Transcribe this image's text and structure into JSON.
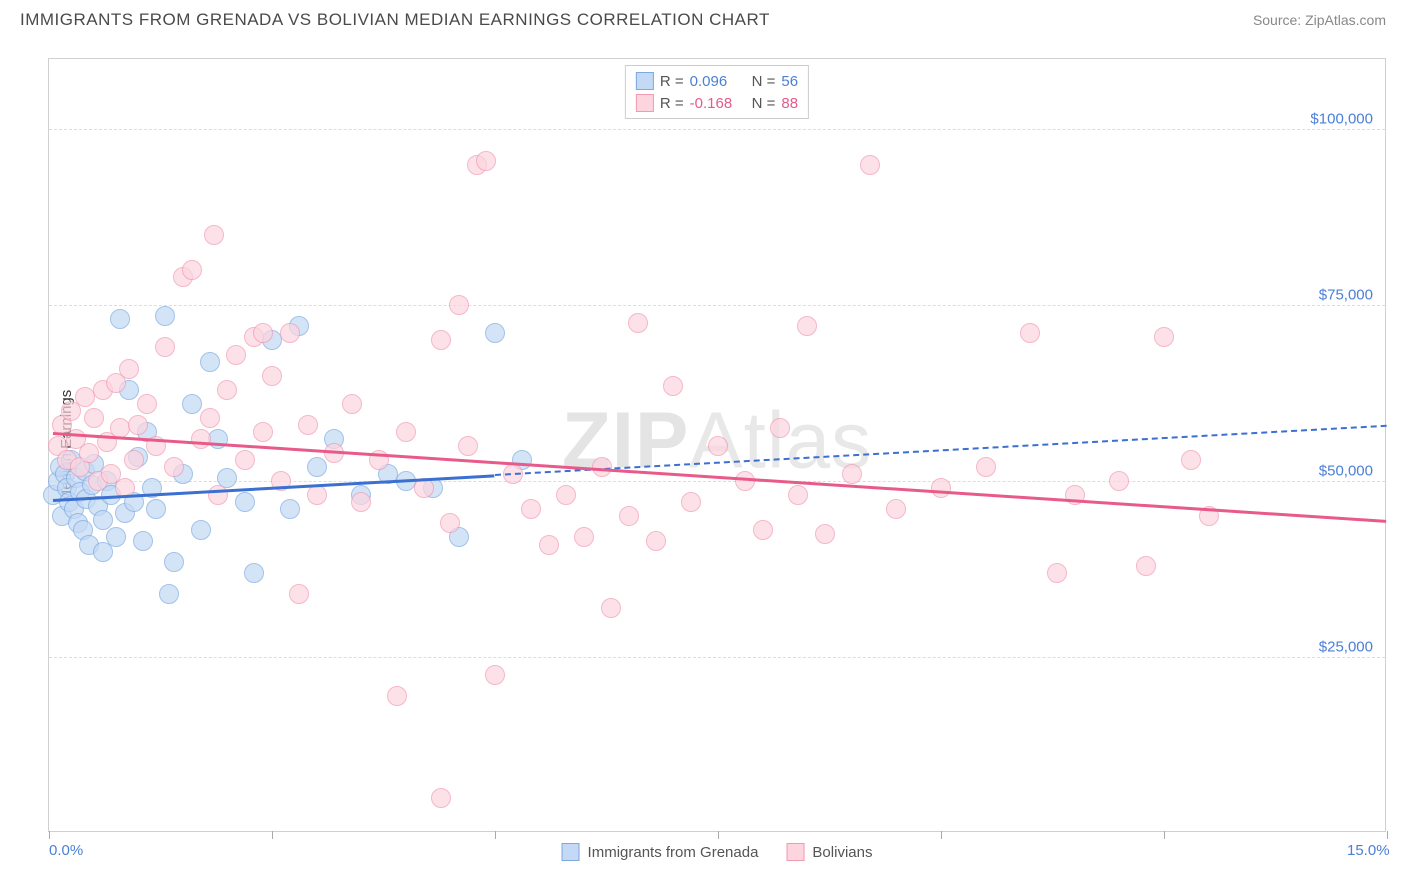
{
  "title": "IMMIGRANTS FROM GRENADA VS BOLIVIAN MEDIAN EARNINGS CORRELATION CHART",
  "source": "Source: ZipAtlas.com",
  "watermark": "ZIPAtlas",
  "ylabel": "Median Earnings",
  "chart": {
    "type": "scatter",
    "xlim": [
      0,
      15
    ],
    "ylim": [
      0,
      110000
    ],
    "x_tick_positions": [
      0,
      2.5,
      5,
      7.5,
      10,
      12.5,
      15
    ],
    "x_axis_labels": [
      {
        "pos": 0,
        "text": "0.0%"
      },
      {
        "pos": 15,
        "text": "15.0%"
      }
    ],
    "y_gridlines": [
      25000,
      50000,
      75000,
      100000
    ],
    "y_tick_labels": [
      "$25,000",
      "$50,000",
      "$75,000",
      "$100,000"
    ],
    "background_color": "#ffffff",
    "grid_color": "#dddddd",
    "border_color": "#d0d0d0",
    "label_color": "#4a7fd8",
    "point_radius": 10,
    "series": [
      {
        "name": "Immigrants from Grenada",
        "fill": "#c3d9f5",
        "stroke": "#7ba9e0",
        "fill_opacity": 0.7,
        "R": "0.096",
        "N": "56",
        "stat_color": "#4a7fd8",
        "trend": {
          "x1": 0.05,
          "y1": 47500,
          "x2": 5.0,
          "y2": 51000,
          "solid": true,
          "dash_x2": 15,
          "dash_y2": 58000,
          "color": "#3b6fd0",
          "width": 3
        },
        "points": [
          [
            0.05,
            48000
          ],
          [
            0.1,
            50000
          ],
          [
            0.12,
            52000
          ],
          [
            0.15,
            45000
          ],
          [
            0.18,
            51000
          ],
          [
            0.2,
            49000
          ],
          [
            0.22,
            47000
          ],
          [
            0.25,
            53000
          ],
          [
            0.28,
            46000
          ],
          [
            0.3,
            50500
          ],
          [
            0.32,
            44000
          ],
          [
            0.35,
            48500
          ],
          [
            0.38,
            43000
          ],
          [
            0.4,
            51500
          ],
          [
            0.42,
            47500
          ],
          [
            0.45,
            41000
          ],
          [
            0.48,
            49500
          ],
          [
            0.5,
            52500
          ],
          [
            0.55,
            46500
          ],
          [
            0.6,
            44500
          ],
          [
            0.65,
            50000
          ],
          [
            0.7,
            48000
          ],
          [
            0.75,
            42000
          ],
          [
            0.8,
            73000
          ],
          [
            0.85,
            45500
          ],
          [
            0.9,
            63000
          ],
          [
            0.95,
            47000
          ],
          [
            1.0,
            53500
          ],
          [
            1.05,
            41500
          ],
          [
            1.1,
            57000
          ],
          [
            1.15,
            49000
          ],
          [
            1.2,
            46000
          ],
          [
            1.3,
            73500
          ],
          [
            1.35,
            34000
          ],
          [
            1.4,
            38500
          ],
          [
            1.5,
            51000
          ],
          [
            1.6,
            61000
          ],
          [
            1.7,
            43000
          ],
          [
            1.8,
            67000
          ],
          [
            1.9,
            56000
          ],
          [
            2.0,
            50500
          ],
          [
            2.2,
            47000
          ],
          [
            2.3,
            37000
          ],
          [
            2.5,
            70000
          ],
          [
            2.7,
            46000
          ],
          [
            2.8,
            72000
          ],
          [
            3.0,
            52000
          ],
          [
            3.2,
            56000
          ],
          [
            3.5,
            48000
          ],
          [
            3.8,
            51000
          ],
          [
            4.0,
            50000
          ],
          [
            4.3,
            49000
          ],
          [
            4.6,
            42000
          ],
          [
            5.0,
            71000
          ],
          [
            5.3,
            53000
          ],
          [
            0.6,
            40000
          ]
        ]
      },
      {
        "name": "Bolivians",
        "fill": "#fcd5df",
        "stroke": "#f299b3",
        "fill_opacity": 0.7,
        "R": "-0.168",
        "N": "88",
        "stat_color": "#e85a8a",
        "trend": {
          "x1": 0.05,
          "y1": 57000,
          "x2": 15,
          "y2": 44500,
          "solid": true,
          "color": "#e85a8a",
          "width": 3
        },
        "points": [
          [
            0.1,
            55000
          ],
          [
            0.15,
            58000
          ],
          [
            0.2,
            53000
          ],
          [
            0.25,
            60000
          ],
          [
            0.3,
            56000
          ],
          [
            0.35,
            52000
          ],
          [
            0.4,
            62000
          ],
          [
            0.45,
            54000
          ],
          [
            0.5,
            59000
          ],
          [
            0.55,
            50000
          ],
          [
            0.6,
            63000
          ],
          [
            0.65,
            55500
          ],
          [
            0.7,
            51000
          ],
          [
            0.75,
            64000
          ],
          [
            0.8,
            57500
          ],
          [
            0.85,
            49000
          ],
          [
            0.9,
            66000
          ],
          [
            0.95,
            53000
          ],
          [
            1.0,
            58000
          ],
          [
            1.1,
            61000
          ],
          [
            1.2,
            55000
          ],
          [
            1.3,
            69000
          ],
          [
            1.4,
            52000
          ],
          [
            1.5,
            79000
          ],
          [
            1.6,
            80000
          ],
          [
            1.7,
            56000
          ],
          [
            1.8,
            59000
          ],
          [
            1.85,
            85000
          ],
          [
            1.9,
            48000
          ],
          [
            2.0,
            63000
          ],
          [
            2.1,
            68000
          ],
          [
            2.2,
            53000
          ],
          [
            2.3,
            70500
          ],
          [
            2.4,
            57000
          ],
          [
            2.5,
            65000
          ],
          [
            2.6,
            50000
          ],
          [
            2.7,
            71000
          ],
          [
            2.8,
            34000
          ],
          [
            2.9,
            58000
          ],
          [
            3.0,
            48000
          ],
          [
            3.2,
            54000
          ],
          [
            3.4,
            61000
          ],
          [
            3.5,
            47000
          ],
          [
            3.7,
            53000
          ],
          [
            3.9,
            19500
          ],
          [
            4.0,
            57000
          ],
          [
            4.2,
            49000
          ],
          [
            4.4,
            70000
          ],
          [
            4.5,
            44000
          ],
          [
            4.6,
            75000
          ],
          [
            4.7,
            55000
          ],
          [
            4.8,
            95000
          ],
          [
            4.9,
            95500
          ],
          [
            5.0,
            22500
          ],
          [
            5.2,
            51000
          ],
          [
            5.4,
            46000
          ],
          [
            5.6,
            41000
          ],
          [
            5.8,
            48000
          ],
          [
            6.0,
            42000
          ],
          [
            6.2,
            52000
          ],
          [
            6.3,
            32000
          ],
          [
            6.5,
            45000
          ],
          [
            6.6,
            72500
          ],
          [
            6.8,
            41500
          ],
          [
            7.0,
            63500
          ],
          [
            7.2,
            47000
          ],
          [
            7.5,
            55000
          ],
          [
            7.8,
            50000
          ],
          [
            8.0,
            43000
          ],
          [
            8.2,
            57500
          ],
          [
            8.4,
            48000
          ],
          [
            8.5,
            72000
          ],
          [
            8.7,
            42500
          ],
          [
            9.0,
            51000
          ],
          [
            9.2,
            95000
          ],
          [
            9.5,
            46000
          ],
          [
            10.0,
            49000
          ],
          [
            10.5,
            52000
          ],
          [
            11.0,
            71000
          ],
          [
            11.3,
            37000
          ],
          [
            11.5,
            48000
          ],
          [
            12.0,
            50000
          ],
          [
            12.3,
            38000
          ],
          [
            12.5,
            70500
          ],
          [
            12.8,
            53000
          ],
          [
            13.0,
            45000
          ],
          [
            4.4,
            5000
          ],
          [
            2.4,
            71000
          ]
        ]
      }
    ]
  },
  "legend": {
    "items": [
      {
        "label": "Immigrants from Grenada",
        "fill": "#c3d9f5",
        "stroke": "#7ba9e0"
      },
      {
        "label": "Bolivians",
        "fill": "#fcd5df",
        "stroke": "#f299b3"
      }
    ]
  }
}
